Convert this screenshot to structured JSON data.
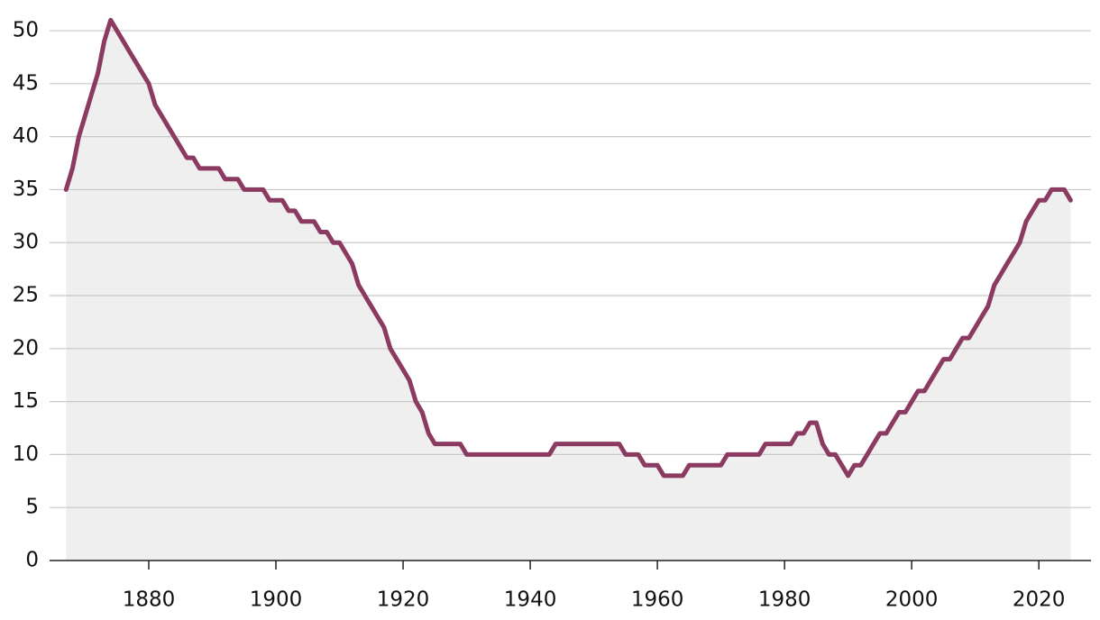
{
  "chart_data": {
    "type": "line",
    "x": [
      1867,
      1868,
      1869,
      1870,
      1871,
      1872,
      1873,
      1874,
      1875,
      1876,
      1877,
      1878,
      1879,
      1880,
      1881,
      1882,
      1883,
      1884,
      1885,
      1886,
      1887,
      1888,
      1889,
      1890,
      1891,
      1892,
      1893,
      1894,
      1895,
      1896,
      1897,
      1898,
      1899,
      1900,
      1901,
      1902,
      1903,
      1904,
      1905,
      1906,
      1907,
      1908,
      1909,
      1910,
      1911,
      1912,
      1913,
      1914,
      1915,
      1916,
      1917,
      1918,
      1919,
      1920,
      1921,
      1922,
      1923,
      1924,
      1925,
      1926,
      1927,
      1928,
      1929,
      1930,
      1931,
      1932,
      1933,
      1934,
      1935,
      1936,
      1937,
      1938,
      1939,
      1940,
      1941,
      1942,
      1943,
      1944,
      1945,
      1946,
      1947,
      1948,
      1949,
      1950,
      1951,
      1952,
      1953,
      1954,
      1955,
      1956,
      1957,
      1958,
      1959,
      1960,
      1961,
      1962,
      1963,
      1964,
      1965,
      1966,
      1967,
      1968,
      1969,
      1970,
      1971,
      1972,
      1973,
      1974,
      1975,
      1976,
      1977,
      1978,
      1979,
      1980,
      1981,
      1982,
      1983,
      1984,
      1985,
      1986,
      1987,
      1988,
      1989,
      1990,
      1991,
      1992,
      1993,
      1994,
      1995,
      1996,
      1997,
      1998,
      1999,
      2000,
      2001,
      2002,
      2003,
      2004,
      2005,
      2006,
      2007,
      2008,
      2009,
      2010,
      2011,
      2012,
      2013,
      2014,
      2015,
      2016,
      2017,
      2018,
      2019,
      2020,
      2021,
      2022,
      2023,
      2024,
      2025
    ],
    "series": [
      {
        "color": "#8b3a62",
        "fill": "#efefef",
        "values": [
          35,
          37,
          40,
          42,
          44,
          46,
          49,
          51,
          50,
          49,
          48,
          47,
          46,
          45,
          43,
          42,
          41,
          40,
          39,
          38,
          38,
          37,
          37,
          37,
          37,
          36,
          36,
          36,
          35,
          35,
          35,
          35,
          34,
          34,
          34,
          33,
          33,
          32,
          32,
          32,
          31,
          31,
          30,
          30,
          29,
          28,
          26,
          25,
          24,
          23,
          22,
          20,
          19,
          18,
          17,
          15,
          14,
          12,
          11,
          11,
          11,
          11,
          11,
          10,
          10,
          10,
          10,
          10,
          10,
          10,
          10,
          10,
          10,
          10,
          10,
          10,
          10,
          11,
          11,
          11,
          11,
          11,
          11,
          11,
          11,
          11,
          11,
          11,
          10,
          10,
          10,
          9,
          9,
          9,
          8,
          8,
          8,
          8,
          9,
          9,
          9,
          9,
          9,
          9,
          10,
          10,
          10,
          10,
          10,
          10,
          11,
          11,
          11,
          11,
          11,
          12,
          12,
          13,
          13,
          11,
          10,
          10,
          9,
          8,
          9,
          9,
          10,
          11,
          12,
          12,
          13,
          14,
          14,
          15,
          16,
          16,
          17,
          18,
          19,
          19,
          20,
          21,
          21,
          22,
          23,
          24,
          26,
          27,
          28,
          29,
          30,
          32,
          33,
          34,
          34,
          35,
          35,
          35,
          34
        ]
      }
    ],
    "xlim": [
      1864.4,
      2028.2
    ],
    "xticks": [
      1880,
      1900,
      1920,
      1940,
      1960,
      1980,
      2000,
      2020
    ],
    "ylim": [
      0,
      51.5
    ],
    "yticks": [
      0,
      5,
      10,
      15,
      20,
      25,
      30,
      35,
      40,
      45,
      50
    ],
    "grid": true
  }
}
